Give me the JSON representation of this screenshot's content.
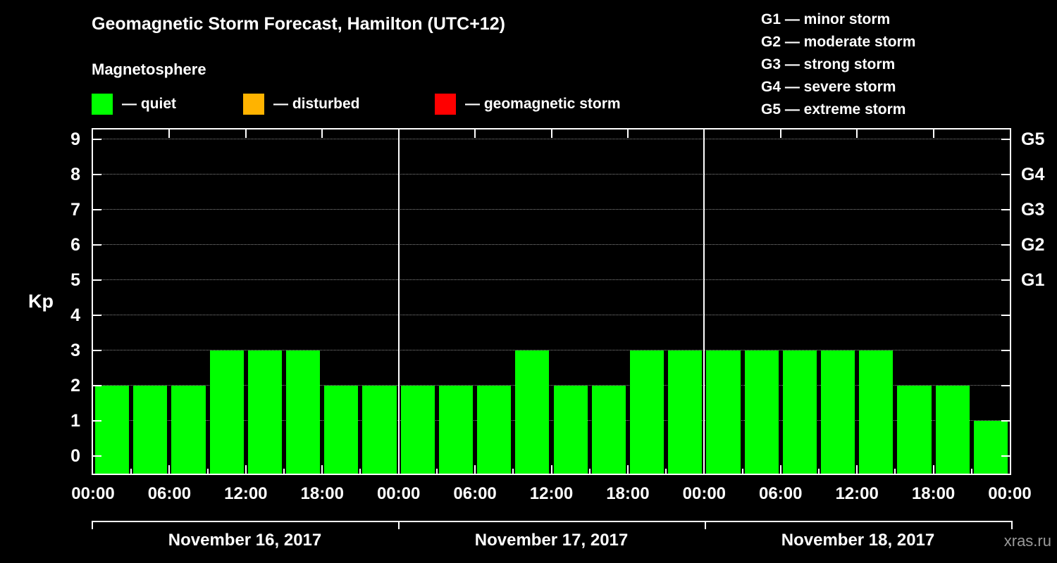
{
  "title": "Geomagnetic Storm Forecast, Hamilton (UTC+12)",
  "subtitle": "Magnetosphere",
  "legend": {
    "items": [
      {
        "name": "quiet",
        "label": "— quiet",
        "color": "#00ff00"
      },
      {
        "name": "disturbed",
        "label": "— disturbed",
        "color": "#ffb300"
      },
      {
        "name": "storm",
        "label": "— geomagnetic storm",
        "color": "#ff0000"
      }
    ]
  },
  "g_scale_legend": [
    "G1 — minor storm",
    "G2 — moderate storm",
    "G3 — strong storm",
    "G4 — severe storm",
    "G5 — extreme storm"
  ],
  "watermark": "xras.ru",
  "chart_data": {
    "type": "bar",
    "title": "Geomagnetic Storm Forecast, Hamilton (UTC+12)",
    "ylabel": "Kp",
    "ylim": [
      0,
      9
    ],
    "y_ticks": [
      0,
      1,
      2,
      3,
      4,
      5,
      6,
      7,
      8,
      9
    ],
    "right_axis_labels": [
      {
        "label": "G1",
        "kp": 5
      },
      {
        "label": "G2",
        "kp": 6
      },
      {
        "label": "G3",
        "kp": 7
      },
      {
        "label": "G4",
        "kp": 8
      },
      {
        "label": "G5",
        "kp": 9
      }
    ],
    "x_tick_labels": [
      "00:00",
      "06:00",
      "12:00",
      "18:00",
      "00:00",
      "06:00",
      "12:00",
      "18:00",
      "00:00",
      "06:00",
      "12:00",
      "18:00",
      "00:00"
    ],
    "hours_per_bar": 3,
    "days": [
      {
        "date": "November 16, 2017",
        "values": [
          2,
          2,
          2,
          3,
          3,
          3,
          2,
          2
        ]
      },
      {
        "date": "November 17, 2017",
        "values": [
          2,
          2,
          2,
          3,
          2,
          2,
          3,
          3
        ]
      },
      {
        "date": "November 18, 2017",
        "values": [
          3,
          3,
          3,
          3,
          3,
          2,
          2,
          1
        ]
      }
    ],
    "colors": {
      "quiet": "#00ff00",
      "disturbed": "#ffb300",
      "storm": "#ff0000"
    },
    "thresholds": {
      "disturbed": 4,
      "storm": 5
    },
    "grid": "dotted horizontal at each Kp level",
    "background": "#000000"
  }
}
